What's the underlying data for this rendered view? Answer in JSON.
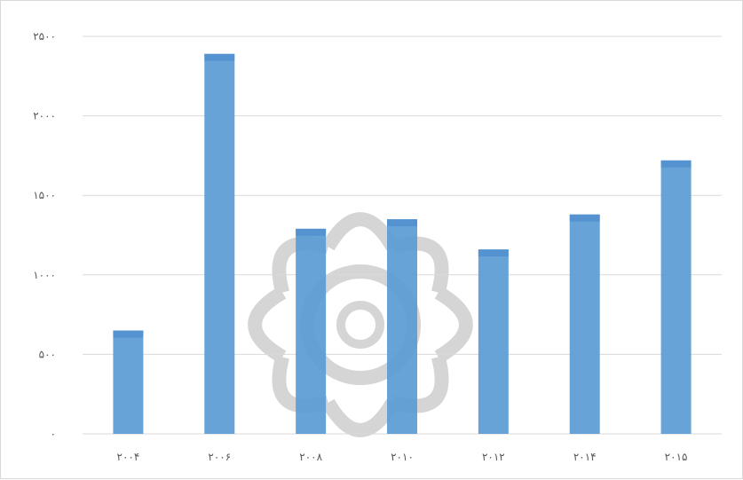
{
  "colors": {
    "bar": "#5b9bd5",
    "bar_top_shade": "#4a89cb",
    "grid": "#d9d9d9",
    "axis_text": "#595959",
    "watermark": "#c8c8c8"
  },
  "chart_data": {
    "type": "bar",
    "title": "",
    "xlabel": "",
    "ylabel": "",
    "categories": [
      "۲۰۰۴",
      "۲۰۰۶",
      "۲۰۰۸",
      "۲۰۱۰",
      "۲۰۱۲",
      "۲۰۱۴",
      "۲۰۱۵"
    ],
    "series": [
      {
        "values": [
          650,
          2390,
          1290,
          1350,
          1160,
          1380,
          1720
        ]
      }
    ],
    "y_ticks": [
      0,
      500,
      1000,
      1500,
      2000,
      2500
    ],
    "y_tick_labels": [
      "۰",
      "۵۰۰",
      "۱۰۰۰",
      "۱۵۰۰",
      "۲۰۰۰",
      "۲۵۰۰"
    ],
    "ylim": [
      0,
      2500
    ],
    "grid": true,
    "legend": "none"
  }
}
